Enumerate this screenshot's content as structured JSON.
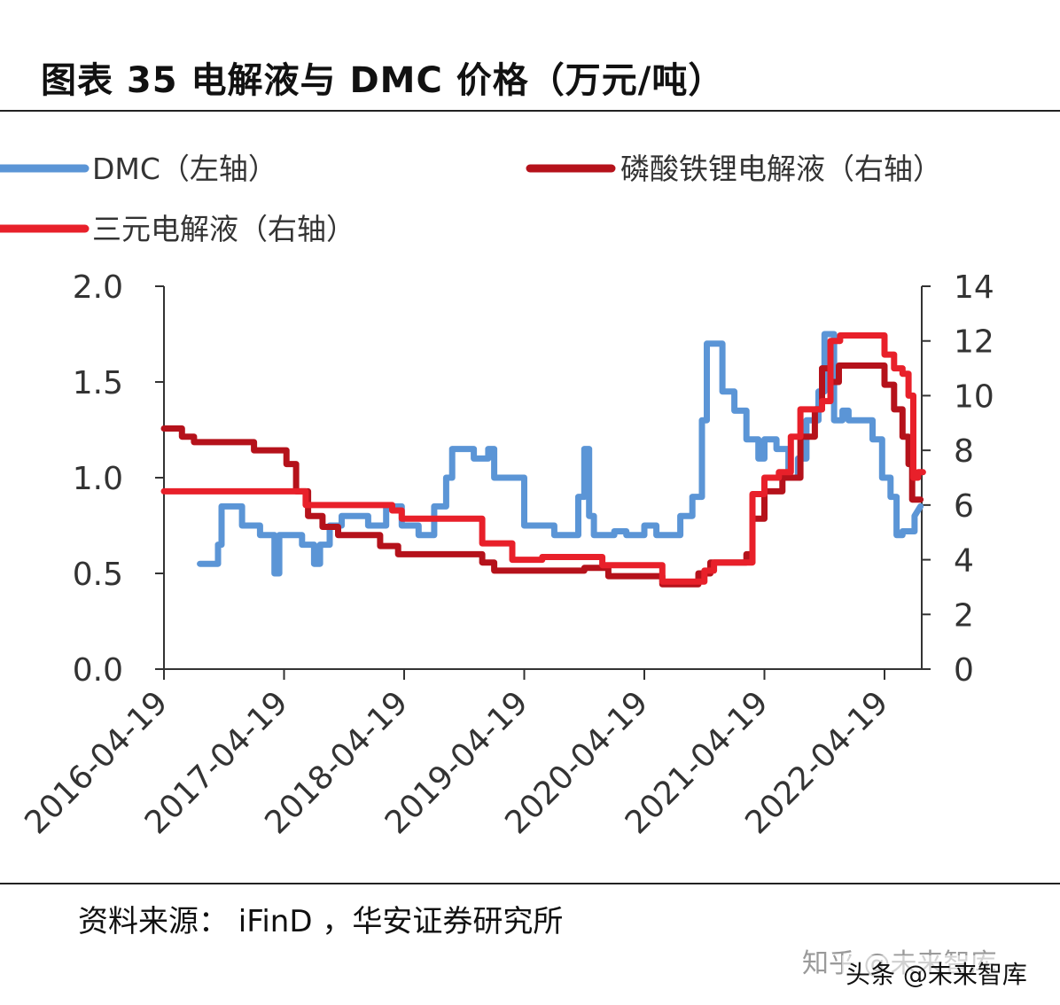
{
  "header": {
    "title": "图表 35 电解液与 DMC 价格（万元/吨）"
  },
  "footer": {
    "source": "资料来源：  iFinD ，华安证券研究所"
  },
  "watermarks": {
    "zhihu": "知乎 @未来智库",
    "toutiao": "头条 @未来智库"
  },
  "chart_data": {
    "type": "line",
    "title": "图表 35 电解液与 DMC 价格（万元/吨）",
    "x_ticks": [
      "2016-04-19",
      "2017-04-19",
      "2018-04-19",
      "2019-04-19",
      "2020-04-19",
      "2021-04-19",
      "2022-04-19"
    ],
    "x_range": [
      2016.3,
      2022.6
    ],
    "y_left": {
      "range": [
        0,
        2.0
      ],
      "ticks": [
        "0.0",
        "0.5",
        "1.0",
        "1.5",
        "2.0"
      ]
    },
    "y_right": {
      "range": [
        0,
        14
      ],
      "ticks": [
        "0",
        "2",
        "4",
        "6",
        "8",
        "10",
        "12",
        "14"
      ]
    },
    "grid": false,
    "legend_position": "top",
    "series": [
      {
        "name": "DMC（左轴）",
        "axis": "left",
        "color": "#5b95d6",
        "points": [
          [
            2016.6,
            0.55
          ],
          [
            2016.75,
            0.55
          ],
          [
            2016.75,
            0.65
          ],
          [
            2016.78,
            0.65
          ],
          [
            2016.78,
            0.85
          ],
          [
            2016.95,
            0.85
          ],
          [
            2016.95,
            0.75
          ],
          [
            2017.1,
            0.75
          ],
          [
            2017.1,
            0.7
          ],
          [
            2017.22,
            0.7
          ],
          [
            2017.22,
            0.5
          ],
          [
            2017.26,
            0.5
          ],
          [
            2017.26,
            0.7
          ],
          [
            2017.45,
            0.7
          ],
          [
            2017.45,
            0.65
          ],
          [
            2017.55,
            0.65
          ],
          [
            2017.55,
            0.55
          ],
          [
            2017.6,
            0.55
          ],
          [
            2017.6,
            0.65
          ],
          [
            2017.68,
            0.65
          ],
          [
            2017.68,
            0.75
          ],
          [
            2017.78,
            0.75
          ],
          [
            2017.78,
            0.8
          ],
          [
            2018.0,
            0.8
          ],
          [
            2018.0,
            0.75
          ],
          [
            2018.15,
            0.75
          ],
          [
            2018.15,
            0.85
          ],
          [
            2018.28,
            0.85
          ],
          [
            2018.28,
            0.75
          ],
          [
            2018.42,
            0.75
          ],
          [
            2018.42,
            0.7
          ],
          [
            2018.55,
            0.7
          ],
          [
            2018.55,
            0.85
          ],
          [
            2018.65,
            0.85
          ],
          [
            2018.65,
            1.0
          ],
          [
            2018.7,
            1.0
          ],
          [
            2018.7,
            1.15
          ],
          [
            2018.88,
            1.15
          ],
          [
            2018.88,
            1.1
          ],
          [
            2019.0,
            1.1
          ],
          [
            2019.0,
            1.15
          ],
          [
            2019.05,
            1.15
          ],
          [
            2019.05,
            1.0
          ],
          [
            2019.3,
            1.0
          ],
          [
            2019.3,
            0.75
          ],
          [
            2019.55,
            0.75
          ],
          [
            2019.55,
            0.7
          ],
          [
            2019.75,
            0.7
          ],
          [
            2019.75,
            0.9
          ],
          [
            2019.8,
            0.9
          ],
          [
            2019.8,
            1.15
          ],
          [
            2019.84,
            1.15
          ],
          [
            2019.84,
            0.8
          ],
          [
            2019.88,
            0.8
          ],
          [
            2019.88,
            0.7
          ],
          [
            2020.05,
            0.7
          ],
          [
            2020.05,
            0.72
          ],
          [
            2020.15,
            0.72
          ],
          [
            2020.15,
            0.7
          ],
          [
            2020.3,
            0.7
          ],
          [
            2020.3,
            0.75
          ],
          [
            2020.4,
            0.75
          ],
          [
            2020.4,
            0.7
          ],
          [
            2020.6,
            0.7
          ],
          [
            2020.6,
            0.8
          ],
          [
            2020.7,
            0.8
          ],
          [
            2020.7,
            0.9
          ],
          [
            2020.78,
            0.9
          ],
          [
            2020.78,
            1.3
          ],
          [
            2020.82,
            1.3
          ],
          [
            2020.82,
            1.7
          ],
          [
            2020.95,
            1.7
          ],
          [
            2020.95,
            1.45
          ],
          [
            2021.05,
            1.45
          ],
          [
            2021.05,
            1.35
          ],
          [
            2021.15,
            1.35
          ],
          [
            2021.15,
            1.2
          ],
          [
            2021.25,
            1.2
          ],
          [
            2021.25,
            1.1
          ],
          [
            2021.3,
            1.1
          ],
          [
            2021.3,
            1.2
          ],
          [
            2021.4,
            1.2
          ],
          [
            2021.4,
            1.15
          ],
          [
            2021.5,
            1.15
          ],
          [
            2021.5,
            1.0
          ],
          [
            2021.58,
            1.0
          ],
          [
            2021.58,
            1.1
          ],
          [
            2021.65,
            1.1
          ],
          [
            2021.65,
            1.3
          ],
          [
            2021.75,
            1.3
          ],
          [
            2021.75,
            1.45
          ],
          [
            2021.8,
            1.45
          ],
          [
            2021.8,
            1.75
          ],
          [
            2021.88,
            1.75
          ],
          [
            2021.88,
            1.3
          ],
          [
            2021.95,
            1.3
          ],
          [
            2021.95,
            1.35
          ],
          [
            2022.0,
            1.35
          ],
          [
            2022.0,
            1.3
          ],
          [
            2022.2,
            1.3
          ],
          [
            2022.2,
            1.2
          ],
          [
            2022.28,
            1.2
          ],
          [
            2022.28,
            1.0
          ],
          [
            2022.35,
            1.0
          ],
          [
            2022.35,
            0.9
          ],
          [
            2022.4,
            0.9
          ],
          [
            2022.4,
            0.7
          ],
          [
            2022.45,
            0.7
          ],
          [
            2022.45,
            0.72
          ],
          [
            2022.55,
            0.72
          ],
          [
            2022.55,
            0.8
          ],
          [
            2022.6,
            0.85
          ]
        ]
      },
      {
        "name": "磷酸铁锂电解液（右轴）",
        "axis": "right",
        "color": "#b5121b",
        "points": [
          [
            2016.3,
            8.8
          ],
          [
            2016.45,
            8.8
          ],
          [
            2016.45,
            8.5
          ],
          [
            2016.55,
            8.5
          ],
          [
            2016.55,
            8.3
          ],
          [
            2017.05,
            8.3
          ],
          [
            2017.05,
            8.0
          ],
          [
            2017.32,
            8.0
          ],
          [
            2017.32,
            7.5
          ],
          [
            2017.4,
            7.5
          ],
          [
            2017.4,
            6.5
          ],
          [
            2017.5,
            6.5
          ],
          [
            2017.5,
            5.6
          ],
          [
            2017.62,
            5.6
          ],
          [
            2017.62,
            5.2
          ],
          [
            2017.75,
            5.2
          ],
          [
            2017.75,
            4.9
          ],
          [
            2018.1,
            4.9
          ],
          [
            2018.1,
            4.5
          ],
          [
            2018.25,
            4.5
          ],
          [
            2018.25,
            4.2
          ],
          [
            2018.95,
            4.2
          ],
          [
            2018.95,
            3.9
          ],
          [
            2019.05,
            3.9
          ],
          [
            2019.05,
            3.6
          ],
          [
            2019.8,
            3.6
          ],
          [
            2019.8,
            3.7
          ],
          [
            2020.0,
            3.7
          ],
          [
            2020.0,
            3.4
          ],
          [
            2020.45,
            3.4
          ],
          [
            2020.45,
            3.1
          ],
          [
            2020.75,
            3.1
          ],
          [
            2020.75,
            3.5
          ],
          [
            2020.85,
            3.5
          ],
          [
            2020.85,
            3.9
          ],
          [
            2021.15,
            3.9
          ],
          [
            2021.15,
            4.2
          ],
          [
            2021.2,
            4.2
          ],
          [
            2021.2,
            5.5
          ],
          [
            2021.3,
            5.5
          ],
          [
            2021.3,
            6.5
          ],
          [
            2021.45,
            6.5
          ],
          [
            2021.45,
            7.0
          ],
          [
            2021.6,
            7.0
          ],
          [
            2021.6,
            8.5
          ],
          [
            2021.72,
            8.5
          ],
          [
            2021.72,
            9.5
          ],
          [
            2021.78,
            9.5
          ],
          [
            2021.78,
            11.0
          ],
          [
            2021.85,
            11.0
          ],
          [
            2021.85,
            10.5
          ],
          [
            2021.92,
            10.5
          ],
          [
            2021.92,
            11.1
          ],
          [
            2022.3,
            11.1
          ],
          [
            2022.3,
            10.4
          ],
          [
            2022.38,
            10.4
          ],
          [
            2022.38,
            9.5
          ],
          [
            2022.45,
            9.5
          ],
          [
            2022.45,
            8.5
          ],
          [
            2022.5,
            8.5
          ],
          [
            2022.5,
            7.5
          ],
          [
            2022.53,
            7.5
          ],
          [
            2022.53,
            6.2
          ],
          [
            2022.6,
            6.2
          ]
        ]
      },
      {
        "name": "三元电解液（右轴）",
        "axis": "right",
        "color": "#e8202a",
        "points": [
          [
            2016.3,
            6.5
          ],
          [
            2017.48,
            6.5
          ],
          [
            2017.48,
            6.0
          ],
          [
            2018.2,
            6.0
          ],
          [
            2018.2,
            5.8
          ],
          [
            2018.28,
            5.8
          ],
          [
            2018.28,
            5.5
          ],
          [
            2018.95,
            5.5
          ],
          [
            2018.95,
            4.6
          ],
          [
            2019.2,
            4.6
          ],
          [
            2019.2,
            4.0
          ],
          [
            2019.45,
            4.0
          ],
          [
            2019.45,
            4.1
          ],
          [
            2019.95,
            4.1
          ],
          [
            2019.95,
            3.8
          ],
          [
            2020.45,
            3.8
          ],
          [
            2020.45,
            3.2
          ],
          [
            2020.8,
            3.2
          ],
          [
            2020.8,
            3.6
          ],
          [
            2020.88,
            3.6
          ],
          [
            2020.88,
            3.9
          ],
          [
            2021.2,
            3.9
          ],
          [
            2021.2,
            6.4
          ],
          [
            2021.3,
            6.4
          ],
          [
            2021.3,
            7.0
          ],
          [
            2021.42,
            7.0
          ],
          [
            2021.42,
            7.2
          ],
          [
            2021.52,
            7.2
          ],
          [
            2021.52,
            8.5
          ],
          [
            2021.6,
            8.5
          ],
          [
            2021.6,
            9.5
          ],
          [
            2021.78,
            9.5
          ],
          [
            2021.78,
            9.8
          ],
          [
            2021.85,
            9.8
          ],
          [
            2021.85,
            12.0
          ],
          [
            2021.93,
            12.0
          ],
          [
            2021.93,
            12.2
          ],
          [
            2022.3,
            12.2
          ],
          [
            2022.3,
            11.5
          ],
          [
            2022.38,
            11.5
          ],
          [
            2022.38,
            11.0
          ],
          [
            2022.45,
            11.0
          ],
          [
            2022.45,
            10.8
          ],
          [
            2022.5,
            10.8
          ],
          [
            2022.5,
            10.0
          ],
          [
            2022.54,
            10.0
          ],
          [
            2022.54,
            7.0
          ],
          [
            2022.58,
            7.0
          ],
          [
            2022.58,
            7.2
          ],
          [
            2022.62,
            7.2
          ]
        ]
      }
    ]
  }
}
